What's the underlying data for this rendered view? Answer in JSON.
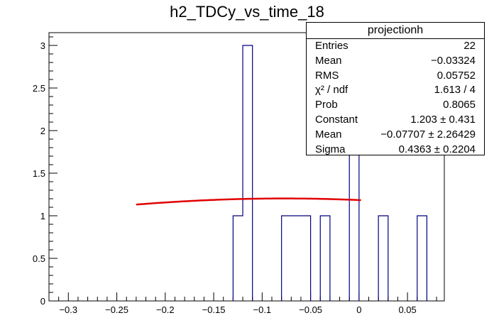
{
  "chart_data": {
    "type": "histogram",
    "title": "h2_TDCy_vs_time_18",
    "xlabel": "",
    "ylabel": "",
    "xlim": [
      -0.32,
      0.088
    ],
    "ylim": [
      0,
      3.15
    ],
    "x_ticks": [
      "−0.3",
      "−0.25",
      "−0.2",
      "−0.15",
      "−0.1",
      "−0.05",
      "0",
      "0.05"
    ],
    "y_ticks": [
      "0",
      "0.5",
      "1",
      "1.5",
      "2",
      "2.5",
      "3"
    ],
    "bins": [
      {
        "x0": -0.13,
        "x1": -0.12,
        "count": 1
      },
      {
        "x0": -0.12,
        "x1": -0.11,
        "count": 3
      },
      {
        "x0": -0.08,
        "x1": -0.05,
        "count": 1
      },
      {
        "x0": -0.04,
        "x1": -0.03,
        "count": 1
      },
      {
        "x0": -0.01,
        "x1": 0.0,
        "count": 2
      },
      {
        "x0": 0.02,
        "x1": 0.03,
        "count": 1
      },
      {
        "x0": 0.06,
        "x1": 0.07,
        "count": 1
      }
    ],
    "fit": {
      "type": "gaussian",
      "constant": 1.203,
      "mean": -0.07707,
      "sigma": 0.4363,
      "x_range": [
        -0.23,
        0.002
      ],
      "color": "#e00000"
    },
    "histogram_color": "#000080"
  },
  "stats_box": {
    "title": "projectionh",
    "rows": [
      {
        "key": "Entries",
        "value": "22"
      },
      {
        "key": "Mean",
        "value": "−0.03324"
      },
      {
        "key": "RMS",
        "value": "0.05752"
      },
      {
        "key": "χ² / ndf",
        "value": "1.613 / 4"
      },
      {
        "key": "Prob",
        "value": "0.8065"
      },
      {
        "key": "Constant",
        "value": "1.203 ± 0.431"
      },
      {
        "key": "Mean",
        "value": "−0.07707 ± 2.26429"
      },
      {
        "key": "Sigma",
        "value": "0.4363 ± 0.2204"
      }
    ]
  }
}
